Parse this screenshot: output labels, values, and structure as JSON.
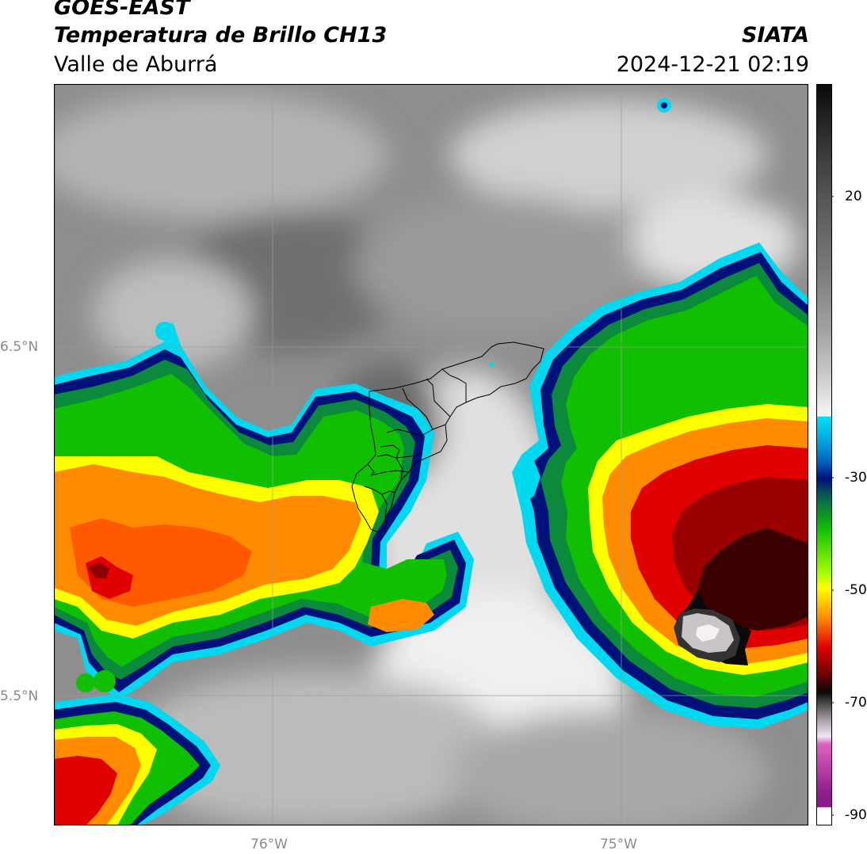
{
  "header": {
    "satellite": "GOES-EAST",
    "product": "Temperatura de Brillo CH13",
    "region": "Valle de Aburrá",
    "agency": "SIATA",
    "datetime": "2024-12-21 02:19"
  },
  "map": {
    "lat_labels": [
      "6.5°N",
      "5.5°N"
    ],
    "lon_labels": [
      "76°W",
      "75°W"
    ],
    "extent": {
      "lon": [
        -76.62,
        -74.47
      ],
      "lat": [
        5.16,
        7.25
      ]
    }
  },
  "colorbar": {
    "ticks": [
      "20",
      "-30",
      "-50",
      "-70",
      "-90"
    ],
    "range": [
      -94,
      36
    ],
    "palette": {
      "magenta": "#8b1a8b",
      "white": "#ffffff",
      "black": "#0a0a0a",
      "red": "#e00000",
      "orange": "#ff8c00",
      "yellow": "#ffff00",
      "green": "#10c000",
      "dark_blue": "#00127a",
      "cyan": "#00d8f0",
      "light_gray": "#e8e8e8",
      "dark_gray": "#555555"
    }
  }
}
